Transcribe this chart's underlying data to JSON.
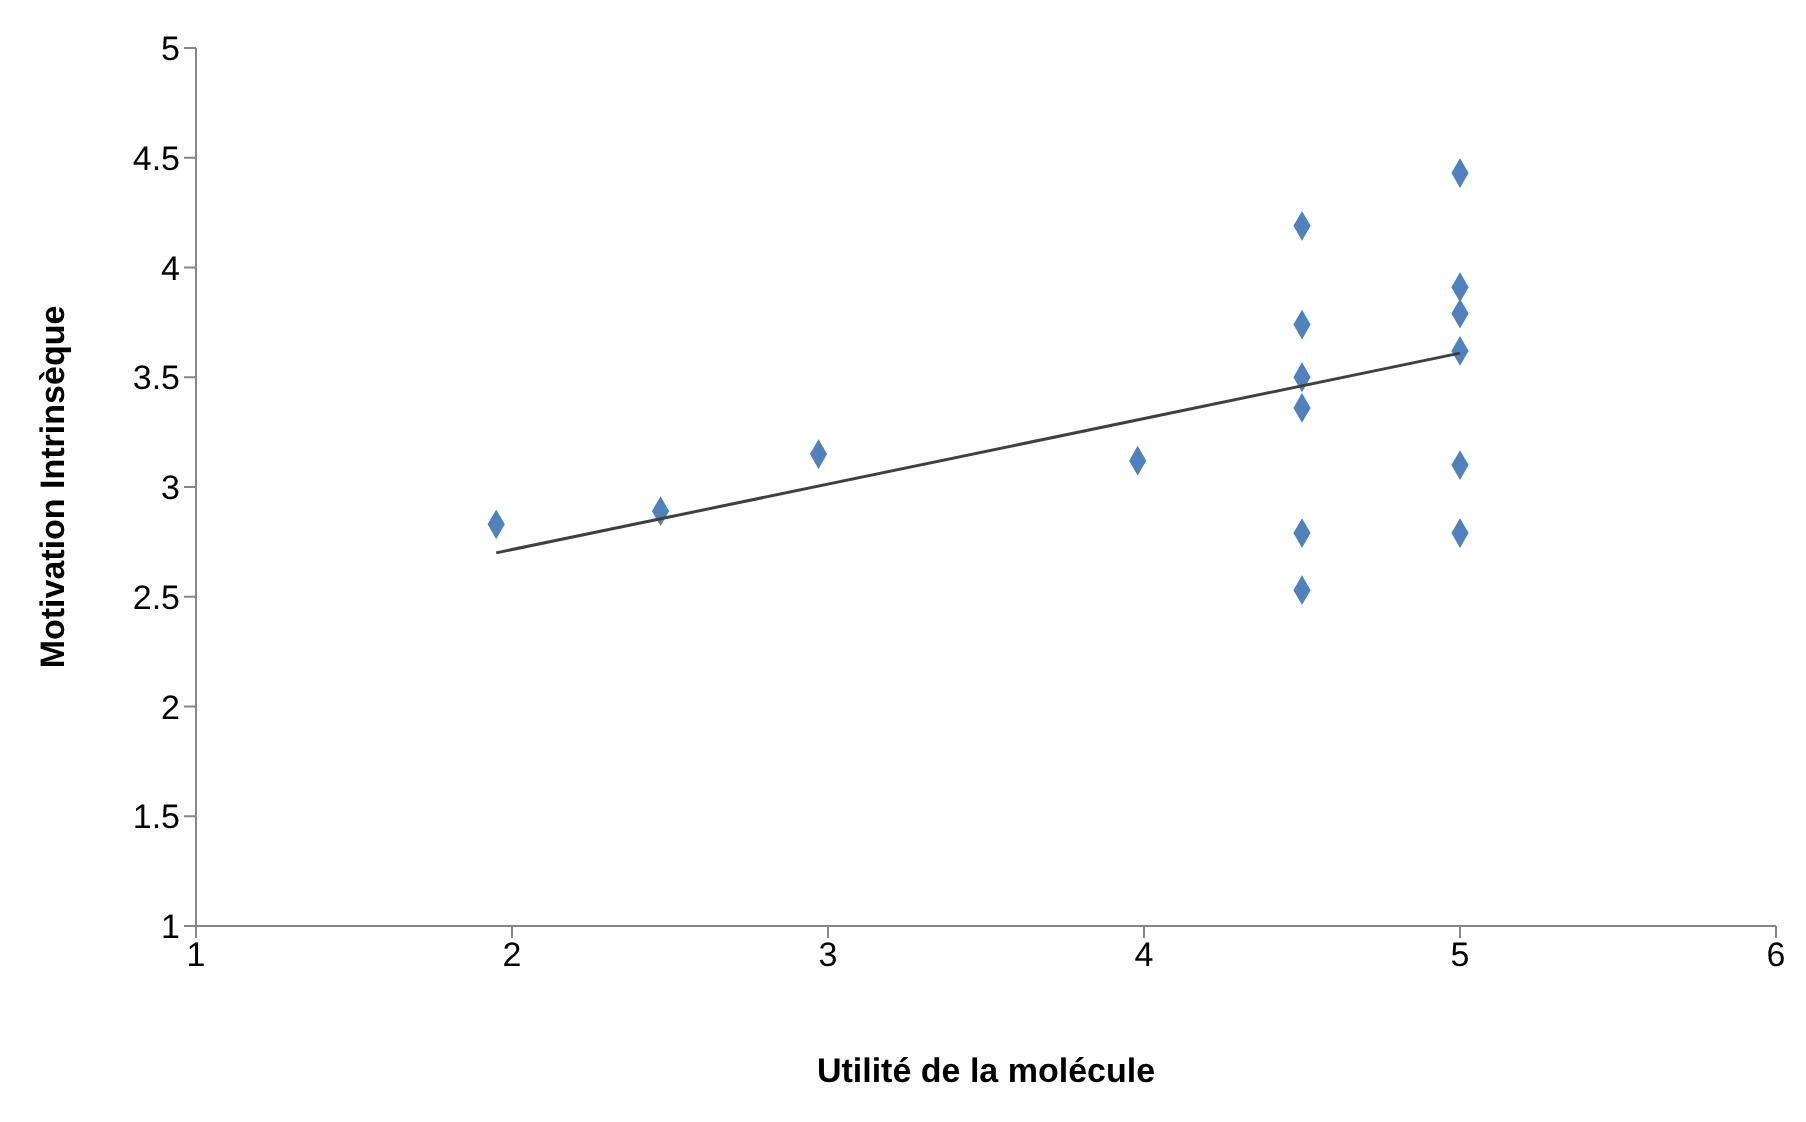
{
  "chart_data": {
    "type": "scatter",
    "xlabel": "Utilité de la molécule",
    "ylabel": "Motivation Intrinsèque",
    "xlim": [
      1,
      6
    ],
    "xticks": [
      1,
      2,
      3,
      4,
      5,
      6
    ],
    "ylim": [
      1,
      5
    ],
    "yticks": [
      1,
      1.5,
      2,
      2.5,
      3,
      3.5,
      4,
      4.5,
      5
    ],
    "grid": false,
    "legend": false,
    "marker": "diamond",
    "series": [
      {
        "color": "#4f81bd",
        "x": [
          1.95,
          2.47,
          2.97,
          3.98,
          4.5,
          4.5,
          4.5,
          4.5,
          4.5,
          4.5,
          5,
          5,
          5,
          5,
          5,
          5
        ],
        "values": [
          2.83,
          2.89,
          3.15,
          3.12,
          4.19,
          3.74,
          3.5,
          3.36,
          2.79,
          2.53,
          4.43,
          3.91,
          3.79,
          3.62,
          3.1,
          2.79
        ]
      },
      {
        "type": "line",
        "color": "#404040",
        "marker": "none",
        "x": [
          1.95,
          5
        ],
        "values": [
          2.7,
          3.61
        ]
      }
    ]
  }
}
